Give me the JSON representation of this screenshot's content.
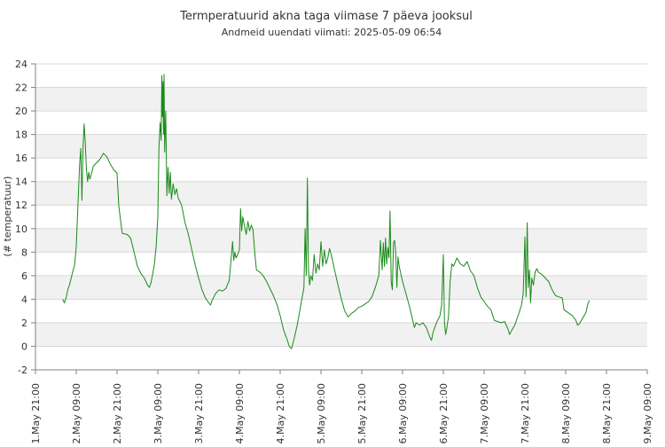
{
  "chart_data": {
    "type": "line",
    "title": "Termperatuurid akna taga viimase 7 päeva jooksul",
    "subtitle": "Andmeid uuendati viimati: 2025-05-09 06:54",
    "xlabel": "",
    "ylabel": "(# temperatuur)",
    "ylim": [
      -2,
      24
    ],
    "xlim": [
      "2025-05-01 21:00",
      "2025-05-09 09:00"
    ],
    "grid": true,
    "y_ticks": [
      -2,
      0,
      2,
      4,
      6,
      8,
      10,
      12,
      14,
      16,
      18,
      20,
      22,
      24
    ],
    "x_ticks": [
      {
        "t": "2025-05-01 21:00",
        "label": "1.May 21:00"
      },
      {
        "t": "2025-05-02 09:00",
        "label": "2.May 09:00"
      },
      {
        "t": "2025-05-02 21:00",
        "label": "2.May 21:00"
      },
      {
        "t": "2025-05-03 09:00",
        "label": "3.May 09:00"
      },
      {
        "t": "2025-05-03 21:00",
        "label": "3.May 21:00"
      },
      {
        "t": "2025-05-04 09:00",
        "label": "4.May 09:00"
      },
      {
        "t": "2025-05-04 21:00",
        "label": "4.May 21:00"
      },
      {
        "t": "2025-05-05 09:00",
        "label": "5.May 09:00"
      },
      {
        "t": "2025-05-05 21:00",
        "label": "5.May 21:00"
      },
      {
        "t": "2025-05-06 09:00",
        "label": "6.May 09:00"
      },
      {
        "t": "2025-05-06 21:00",
        "label": "6.May 21:00"
      },
      {
        "t": "2025-05-07 09:00",
        "label": "7.May 09:00"
      },
      {
        "t": "2025-05-07 21:00",
        "label": "7.May 21:00"
      },
      {
        "t": "2025-05-08 09:00",
        "label": "8.May 09:00"
      },
      {
        "t": "2025-05-08 21:00",
        "label": "8.May 21:00"
      },
      {
        "t": "2025-05-09 09:00",
        "label": "9.May 09:00"
      }
    ],
    "colors": {
      "line": "#1a8a1a",
      "band": "#f1f1f1",
      "grid": "#d8d8d8",
      "axis": "#808080",
      "text": "#333333"
    },
    "series": [
      {
        "points": [
          [
            "2025-05-02 05:00",
            4.0
          ],
          [
            "2025-05-02 05:30",
            3.7
          ],
          [
            "2025-05-02 06:00",
            4.1
          ],
          [
            "2025-05-02 06:30",
            4.8
          ],
          [
            "2025-05-02 07:00",
            5.2
          ],
          [
            "2025-05-02 07:30",
            5.8
          ],
          [
            "2025-05-02 08:00",
            6.4
          ],
          [
            "2025-05-02 08:30",
            6.9
          ],
          [
            "2025-05-02 09:00",
            8.5
          ],
          [
            "2025-05-02 09:30",
            12.0
          ],
          [
            "2025-05-02 10:00",
            15.5
          ],
          [
            "2025-05-02 10:20",
            16.8
          ],
          [
            "2025-05-02 10:40",
            12.4
          ],
          [
            "2025-05-02 11:00",
            17.0
          ],
          [
            "2025-05-02 11:20",
            18.9
          ],
          [
            "2025-05-02 11:40",
            17.2
          ],
          [
            "2025-05-02 12:00",
            15.0
          ],
          [
            "2025-05-02 12:20",
            14.0
          ],
          [
            "2025-05-02 12:40",
            14.8
          ],
          [
            "2025-05-02 13:00",
            14.2
          ],
          [
            "2025-05-02 13:30",
            14.7
          ],
          [
            "2025-05-02 14:00",
            15.3
          ],
          [
            "2025-05-02 15:00",
            15.6
          ],
          [
            "2025-05-02 16:00",
            15.9
          ],
          [
            "2025-05-02 17:00",
            16.4
          ],
          [
            "2025-05-02 18:00",
            16.1
          ],
          [
            "2025-05-02 19:00",
            15.5
          ],
          [
            "2025-05-02 20:00",
            15.0
          ],
          [
            "2025-05-02 21:00",
            14.7
          ],
          [
            "2025-05-02 21:30",
            12.0
          ],
          [
            "2025-05-02 22:00",
            10.8
          ],
          [
            "2025-05-02 22:30",
            9.6
          ],
          [
            "2025-05-03 00:00",
            9.5
          ],
          [
            "2025-05-03 01:00",
            9.2
          ],
          [
            "2025-05-03 02:00",
            8.0
          ],
          [
            "2025-05-03 03:00",
            6.8
          ],
          [
            "2025-05-03 04:00",
            6.2
          ],
          [
            "2025-05-03 05:00",
            5.8
          ],
          [
            "2025-05-03 06:00",
            5.2
          ],
          [
            "2025-05-03 06:30",
            5.0
          ],
          [
            "2025-05-03 07:00",
            5.4
          ],
          [
            "2025-05-03 07:30",
            6.2
          ],
          [
            "2025-05-03 08:00",
            7.0
          ],
          [
            "2025-05-03 08:30",
            8.5
          ],
          [
            "2025-05-03 09:00",
            11.0
          ],
          [
            "2025-05-03 09:20",
            17.0
          ],
          [
            "2025-05-03 09:40",
            19.0
          ],
          [
            "2025-05-03 10:00",
            17.5
          ],
          [
            "2025-05-03 10:10",
            23.0
          ],
          [
            "2025-05-03 10:20",
            19.5
          ],
          [
            "2025-05-03 10:30",
            22.5
          ],
          [
            "2025-05-03 10:40",
            18.0
          ],
          [
            "2025-05-03 10:50",
            23.1
          ],
          [
            "2025-05-03 11:00",
            16.5
          ],
          [
            "2025-05-03 11:20",
            20.0
          ],
          [
            "2025-05-03 11:40",
            12.8
          ],
          [
            "2025-05-03 12:00",
            15.2
          ],
          [
            "2025-05-03 12:20",
            13.0
          ],
          [
            "2025-05-03 12:40",
            14.8
          ],
          [
            "2025-05-03 13:00",
            12.5
          ],
          [
            "2025-05-03 13:30",
            13.8
          ],
          [
            "2025-05-03 14:00",
            12.9
          ],
          [
            "2025-05-03 14:30",
            13.4
          ],
          [
            "2025-05-03 15:00",
            12.6
          ],
          [
            "2025-05-03 16:00",
            12.0
          ],
          [
            "2025-05-03 17:00",
            10.5
          ],
          [
            "2025-05-03 18:00",
            9.5
          ],
          [
            "2025-05-03 19:00",
            8.2
          ],
          [
            "2025-05-03 20:00",
            6.9
          ],
          [
            "2025-05-03 21:00",
            5.8
          ],
          [
            "2025-05-03 22:00",
            4.8
          ],
          [
            "2025-05-03 23:00",
            4.1
          ],
          [
            "2025-05-04 00:00",
            3.7
          ],
          [
            "2025-05-04 00:30",
            3.5
          ],
          [
            "2025-05-04 01:00",
            3.9
          ],
          [
            "2025-05-04 02:00",
            4.5
          ],
          [
            "2025-05-04 03:00",
            4.8
          ],
          [
            "2025-05-04 04:00",
            4.7
          ],
          [
            "2025-05-04 05:00",
            4.9
          ],
          [
            "2025-05-04 06:00",
            5.6
          ],
          [
            "2025-05-04 06:30",
            7.2
          ],
          [
            "2025-05-04 07:00",
            8.9
          ],
          [
            "2025-05-04 07:20",
            7.3
          ],
          [
            "2025-05-04 07:40",
            8.0
          ],
          [
            "2025-05-04 08:00",
            7.5
          ],
          [
            "2025-05-04 08:30",
            7.8
          ],
          [
            "2025-05-04 09:00",
            8.2
          ],
          [
            "2025-05-04 09:20",
            11.7
          ],
          [
            "2025-05-04 09:40",
            9.8
          ],
          [
            "2025-05-04 10:00",
            11.0
          ],
          [
            "2025-05-04 10:30",
            10.2
          ],
          [
            "2025-05-04 11:00",
            9.5
          ],
          [
            "2025-05-04 11:30",
            10.6
          ],
          [
            "2025-05-04 12:00",
            9.8
          ],
          [
            "2025-05-04 12:30",
            10.3
          ],
          [
            "2025-05-04 13:00",
            9.9
          ],
          [
            "2025-05-04 13:30",
            8.0
          ],
          [
            "2025-05-04 14:00",
            6.5
          ],
          [
            "2025-05-04 15:00",
            6.3
          ],
          [
            "2025-05-04 16:00",
            6.0
          ],
          [
            "2025-05-04 17:00",
            5.5
          ],
          [
            "2025-05-04 18:00",
            4.9
          ],
          [
            "2025-05-04 19:00",
            4.3
          ],
          [
            "2025-05-04 20:00",
            3.6
          ],
          [
            "2025-05-04 21:00",
            2.6
          ],
          [
            "2025-05-04 22:00",
            1.4
          ],
          [
            "2025-05-04 23:00",
            0.6
          ],
          [
            "2025-05-04 23:40",
            0.0
          ],
          [
            "2025-05-05 00:20",
            -0.2
          ],
          [
            "2025-05-05 01:00",
            0.5
          ],
          [
            "2025-05-05 02:00",
            1.8
          ],
          [
            "2025-05-05 03:00",
            3.4
          ],
          [
            "2025-05-05 04:00",
            5.0
          ],
          [
            "2025-05-05 04:20",
            10.0
          ],
          [
            "2025-05-05 04:40",
            6.0
          ],
          [
            "2025-05-05 05:00",
            14.3
          ],
          [
            "2025-05-05 05:20",
            6.5
          ],
          [
            "2025-05-05 05:40",
            5.2
          ],
          [
            "2025-05-05 06:00",
            6.0
          ],
          [
            "2025-05-05 06:30",
            5.6
          ],
          [
            "2025-05-05 07:00",
            7.8
          ],
          [
            "2025-05-05 07:30",
            6.2
          ],
          [
            "2025-05-05 08:00",
            7.0
          ],
          [
            "2025-05-05 08:30",
            6.5
          ],
          [
            "2025-05-05 09:00",
            8.9
          ],
          [
            "2025-05-05 09:30",
            6.8
          ],
          [
            "2025-05-05 10:00",
            8.2
          ],
          [
            "2025-05-05 10:30",
            7.0
          ],
          [
            "2025-05-05 11:00",
            7.5
          ],
          [
            "2025-05-05 11:30",
            8.3
          ],
          [
            "2025-05-05 12:00",
            7.8
          ],
          [
            "2025-05-05 13:00",
            6.5
          ],
          [
            "2025-05-05 14:00",
            5.2
          ],
          [
            "2025-05-05 15:00",
            4.0
          ],
          [
            "2025-05-05 16:00",
            3.0
          ],
          [
            "2025-05-05 17:00",
            2.5
          ],
          [
            "2025-05-05 18:00",
            2.8
          ],
          [
            "2025-05-05 19:00",
            3.0
          ],
          [
            "2025-05-05 20:00",
            3.3
          ],
          [
            "2025-05-05 21:00",
            3.4
          ],
          [
            "2025-05-05 22:00",
            3.6
          ],
          [
            "2025-05-05 23:00",
            3.8
          ],
          [
            "2025-05-06 00:00",
            4.2
          ],
          [
            "2025-05-06 01:00",
            5.0
          ],
          [
            "2025-05-06 02:00",
            6.0
          ],
          [
            "2025-05-06 02:30",
            9.0
          ],
          [
            "2025-05-06 03:00",
            6.5
          ],
          [
            "2025-05-06 03:20",
            8.8
          ],
          [
            "2025-05-06 03:40",
            6.8
          ],
          [
            "2025-05-06 04:00",
            9.2
          ],
          [
            "2025-05-06 04:20",
            7.0
          ],
          [
            "2025-05-06 04:40",
            8.4
          ],
          [
            "2025-05-06 05:00",
            7.5
          ],
          [
            "2025-05-06 05:20",
            11.5
          ],
          [
            "2025-05-06 05:40",
            5.5
          ],
          [
            "2025-05-06 06:00",
            4.8
          ],
          [
            "2025-05-06 06:20",
            8.8
          ],
          [
            "2025-05-06 06:40",
            9.0
          ],
          [
            "2025-05-06 07:00",
            8.0
          ],
          [
            "2025-05-06 07:20",
            5.0
          ],
          [
            "2025-05-06 07:40",
            7.6
          ],
          [
            "2025-05-06 08:00",
            6.8
          ],
          [
            "2025-05-06 09:00",
            5.5
          ],
          [
            "2025-05-06 10:00",
            4.5
          ],
          [
            "2025-05-06 11:00",
            3.4
          ],
          [
            "2025-05-06 12:00",
            2.2
          ],
          [
            "2025-05-06 12:30",
            1.6
          ],
          [
            "2025-05-06 13:00",
            2.0
          ],
          [
            "2025-05-06 14:00",
            1.8
          ],
          [
            "2025-05-06 15:00",
            2.0
          ],
          [
            "2025-05-06 16:00",
            1.6
          ],
          [
            "2025-05-06 17:00",
            0.8
          ],
          [
            "2025-05-06 17:30",
            0.5
          ],
          [
            "2025-05-06 18:00",
            1.2
          ],
          [
            "2025-05-06 19:00",
            2.0
          ],
          [
            "2025-05-06 20:00",
            2.6
          ],
          [
            "2025-05-06 20:30",
            3.5
          ],
          [
            "2025-05-06 21:00",
            7.8
          ],
          [
            "2025-05-06 21:20",
            2.0
          ],
          [
            "2025-05-06 21:40",
            1.0
          ],
          [
            "2025-05-06 22:00",
            1.5
          ],
          [
            "2025-05-06 22:30",
            2.5
          ],
          [
            "2025-05-06 23:00",
            5.5
          ],
          [
            "2025-05-06 23:30",
            7.0
          ],
          [
            "2025-05-07 00:00",
            6.8
          ],
          [
            "2025-05-07 01:00",
            7.5
          ],
          [
            "2025-05-07 02:00",
            7.0
          ],
          [
            "2025-05-07 03:00",
            6.8
          ],
          [
            "2025-05-07 04:00",
            7.2
          ],
          [
            "2025-05-07 05:00",
            6.4
          ],
          [
            "2025-05-07 06:00",
            6.0
          ],
          [
            "2025-05-07 07:00",
            5.0
          ],
          [
            "2025-05-07 08:00",
            4.2
          ],
          [
            "2025-05-07 09:00",
            3.8
          ],
          [
            "2025-05-07 10:00",
            3.4
          ],
          [
            "2025-05-07 11:00",
            3.1
          ],
          [
            "2025-05-07 12:00",
            2.2
          ],
          [
            "2025-05-07 13:00",
            2.1
          ],
          [
            "2025-05-07 14:00",
            2.0
          ],
          [
            "2025-05-07 15:00",
            2.1
          ],
          [
            "2025-05-07 16:00",
            1.5
          ],
          [
            "2025-05-07 16:30",
            1.0
          ],
          [
            "2025-05-07 17:00",
            1.3
          ],
          [
            "2025-05-07 18:00",
            1.8
          ],
          [
            "2025-05-07 19:00",
            2.6
          ],
          [
            "2025-05-07 20:00",
            3.5
          ],
          [
            "2025-05-07 20:30",
            4.5
          ],
          [
            "2025-05-07 21:00",
            9.3
          ],
          [
            "2025-05-07 21:20",
            4.2
          ],
          [
            "2025-05-07 21:40",
            10.5
          ],
          [
            "2025-05-07 22:00",
            5.0
          ],
          [
            "2025-05-07 22:20",
            6.5
          ],
          [
            "2025-05-07 22:40",
            3.7
          ],
          [
            "2025-05-07 23:00",
            5.8
          ],
          [
            "2025-05-07 23:30",
            5.2
          ],
          [
            "2025-05-08 00:00",
            6.3
          ],
          [
            "2025-05-08 00:30",
            6.6
          ],
          [
            "2025-05-08 01:00",
            6.3
          ],
          [
            "2025-05-08 02:00",
            6.1
          ],
          [
            "2025-05-08 03:00",
            5.8
          ],
          [
            "2025-05-08 04:00",
            5.5
          ],
          [
            "2025-05-08 05:00",
            4.8
          ],
          [
            "2025-05-08 06:00",
            4.3
          ],
          [
            "2025-05-08 07:00",
            4.2
          ],
          [
            "2025-05-08 08:00",
            4.1
          ],
          [
            "2025-05-08 08:30",
            3.1
          ],
          [
            "2025-05-08 09:00",
            3.0
          ],
          [
            "2025-05-08 10:00",
            2.8
          ],
          [
            "2025-05-08 11:00",
            2.6
          ],
          [
            "2025-05-08 12:00",
            2.2
          ],
          [
            "2025-05-08 12:30",
            1.8
          ],
          [
            "2025-05-08 13:00",
            1.9
          ],
          [
            "2025-05-08 14:00",
            2.4
          ],
          [
            "2025-05-08 15:00",
            2.9
          ],
          [
            "2025-05-08 15:30",
            3.6
          ],
          [
            "2025-05-08 16:00",
            3.9
          ]
        ]
      }
    ]
  }
}
